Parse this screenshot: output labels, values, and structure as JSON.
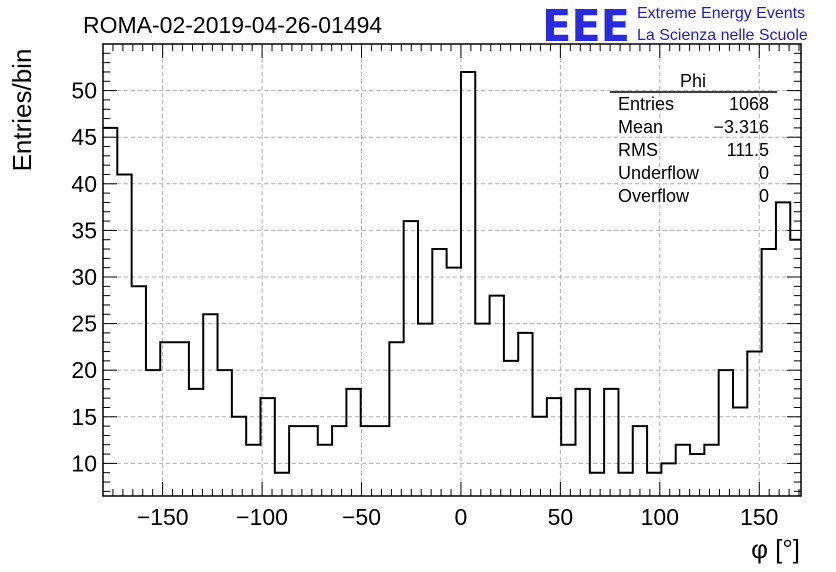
{
  "chart_data": {
    "type": "bar",
    "title": "ROMA-02-2019-04-26-01494",
    "xlabel": "φ [°]",
    "ylabel": "Entries/bin",
    "xlim": [
      -180,
      171
    ],
    "ylim": [
      6.5,
      55
    ],
    "grid": true,
    "x_ticks": [
      -150,
      -100,
      -50,
      0,
      50,
      100,
      150
    ],
    "y_ticks": [
      10,
      15,
      20,
      25,
      30,
      35,
      40,
      45,
      50
    ],
    "bin_width": 7.2,
    "bin_start": -180,
    "values": [
      46,
      41,
      29,
      20,
      23,
      23,
      18,
      26,
      20,
      15,
      12,
      17,
      9,
      14,
      14,
      12,
      14,
      18,
      14,
      14,
      23,
      36,
      25,
      33,
      31,
      52,
      25,
      28,
      21,
      24,
      15,
      17,
      12,
      18,
      9,
      18,
      9,
      14,
      9,
      10,
      12,
      11,
      12,
      20,
      16,
      22,
      33,
      38,
      34
    ],
    "stats": {
      "name": "Phi",
      "rows": [
        {
          "label": "Entries",
          "value": "1068"
        },
        {
          "label": "Mean",
          "value": "−3.316"
        },
        {
          "label": "RMS",
          "value": "111.5"
        },
        {
          "label": "Underflow",
          "value": "0"
        },
        {
          "label": "Overflow",
          "value": "0"
        }
      ]
    }
  },
  "logo": {
    "text": "EEE",
    "line1": "Extreme Energy Events",
    "line2": "La Scienza nelle Scuole",
    "color": "#2a2ae0"
  }
}
